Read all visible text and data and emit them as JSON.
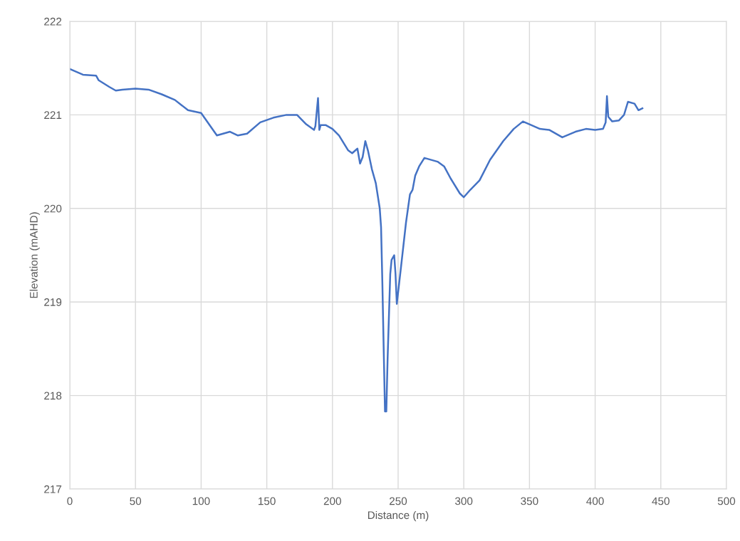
{
  "chart_data": {
    "type": "line",
    "xlabel": "Distance (m)",
    "ylabel": "Elevation (mAHD)",
    "xlim": [
      0,
      500
    ],
    "xticks": [
      0,
      50,
      100,
      150,
      200,
      250,
      300,
      350,
      400,
      450,
      500
    ],
    "ylim": [
      217,
      222
    ],
    "yticks": [
      217,
      218,
      219,
      220,
      221,
      222
    ],
    "grid": true,
    "x": [
      0,
      5,
      10,
      20,
      22,
      30,
      35,
      40,
      50,
      60,
      70,
      80,
      90,
      100,
      112,
      122,
      128,
      135,
      145,
      155,
      165,
      173,
      180,
      186,
      187,
      189,
      190,
      191,
      195,
      200,
      205,
      212,
      215,
      219,
      221,
      223,
      225,
      227,
      230,
      233,
      236,
      237,
      238,
      239,
      240,
      241,
      242,
      244,
      245,
      247,
      248,
      249,
      252,
      256,
      259,
      261,
      263,
      266,
      270,
      280,
      285,
      290,
      297,
      300,
      305,
      312,
      320,
      330,
      338,
      345,
      350,
      358,
      365,
      375,
      385,
      393,
      400,
      406,
      408,
      409,
      410,
      413,
      418,
      422,
      425,
      430,
      433,
      436
    ],
    "series": [
      {
        "color": "#4472c4",
        "values": [
          221.49,
          221.46,
          221.43,
          221.42,
          221.37,
          221.3,
          221.26,
          221.27,
          221.28,
          221.27,
          221.22,
          221.16,
          221.05,
          221.02,
          220.78,
          220.82,
          220.78,
          220.8,
          220.92,
          220.97,
          221.0,
          221.0,
          220.9,
          220.84,
          220.88,
          221.18,
          220.84,
          220.89,
          220.89,
          220.85,
          220.78,
          220.62,
          220.59,
          220.64,
          220.48,
          220.55,
          220.72,
          220.62,
          220.42,
          220.27,
          220.0,
          219.8,
          219.2,
          218.5,
          217.83,
          217.83,
          218.4,
          219.3,
          219.45,
          219.5,
          219.3,
          218.98,
          219.35,
          219.85,
          220.15,
          220.2,
          220.35,
          220.45,
          220.54,
          220.5,
          220.45,
          220.32,
          220.16,
          220.12,
          220.2,
          220.3,
          220.52,
          220.72,
          220.85,
          220.93,
          220.9,
          220.85,
          220.84,
          220.76,
          220.82,
          220.85,
          220.84,
          220.85,
          220.92,
          221.2,
          220.98,
          220.93,
          220.94,
          221.0,
          221.14,
          221.12,
          221.05,
          221.07
        ]
      }
    ]
  }
}
